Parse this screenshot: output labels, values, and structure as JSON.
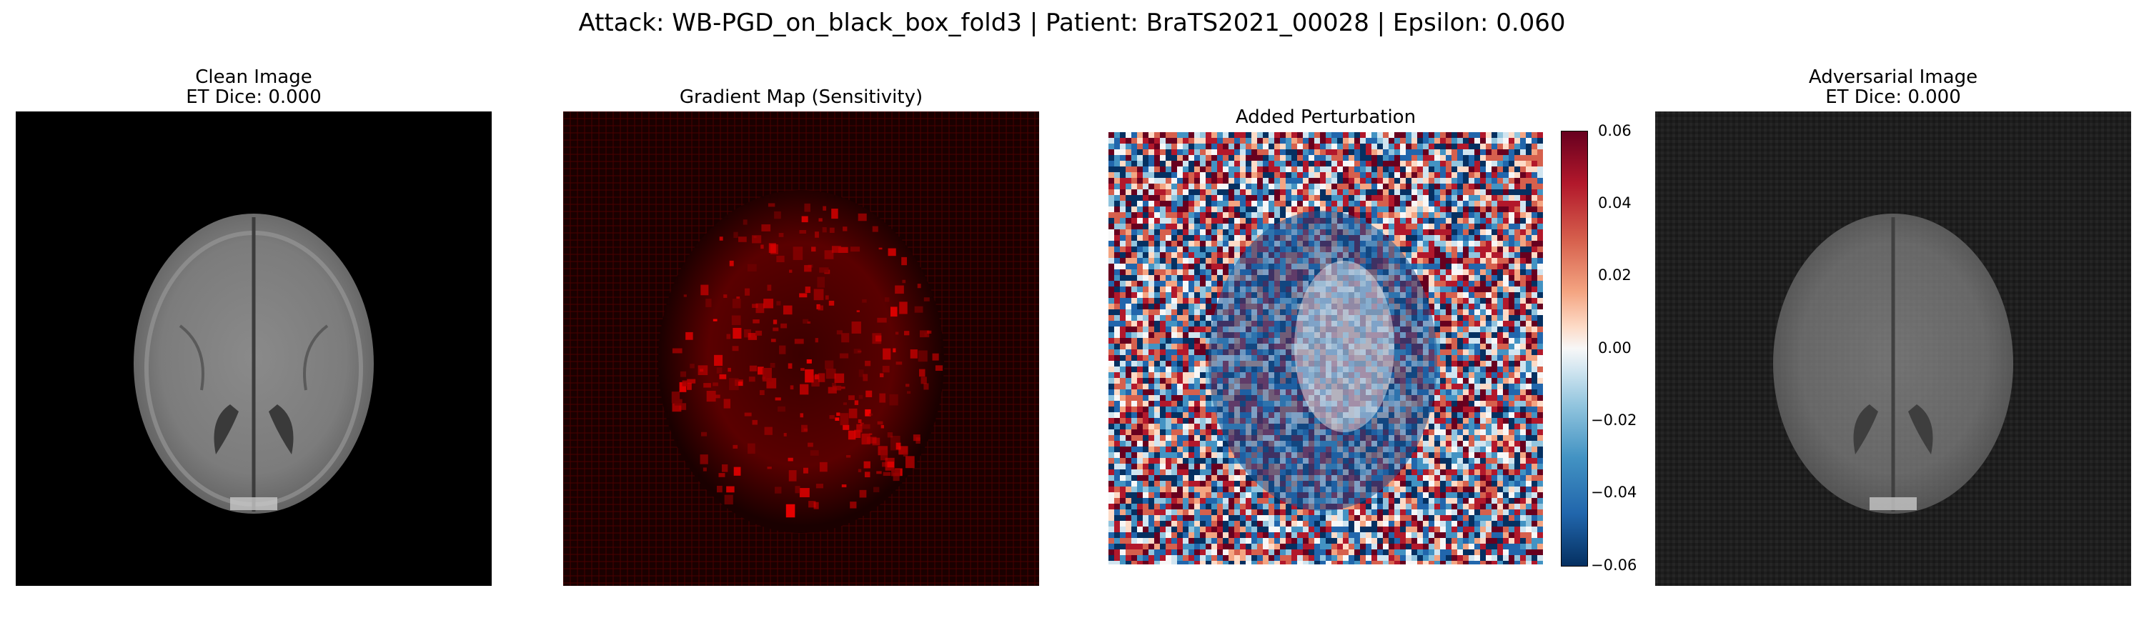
{
  "figure": {
    "suptitle": "Attack: WB-PGD_on_black_box_fold3 | Patient: BraTS2021_00028 | Epsilon: 0.060"
  },
  "panels": [
    {
      "title_line1": "Clean Image",
      "title_line2": "ET Dice: 0.000",
      "content": "grayscale brain MRI slice on black background"
    },
    {
      "title_line1": "Gradient Map (Sensitivity)",
      "title_line2": "",
      "content": "red-on-black gradient sensitivity heatmap"
    },
    {
      "title_line1": "Added Perturbation",
      "title_line2": "",
      "content": "red-white-blue diverging noise perturbation map"
    },
    {
      "title_line1": "Adversarial Image",
      "title_line2": "ET Dice: 0.000",
      "content": "noisy grayscale brain MRI slice"
    }
  ],
  "colorbar": {
    "colormap": "RdBu_r",
    "range": [
      -0.06,
      0.06
    ],
    "ticks": [
      "0.06",
      "0.04",
      "0.02",
      "0.00",
      "−0.02",
      "−0.04",
      "−0.06"
    ],
    "top_color": "#67001f",
    "mid_color": "#f7f7f7",
    "bottom_color": "#053061"
  }
}
